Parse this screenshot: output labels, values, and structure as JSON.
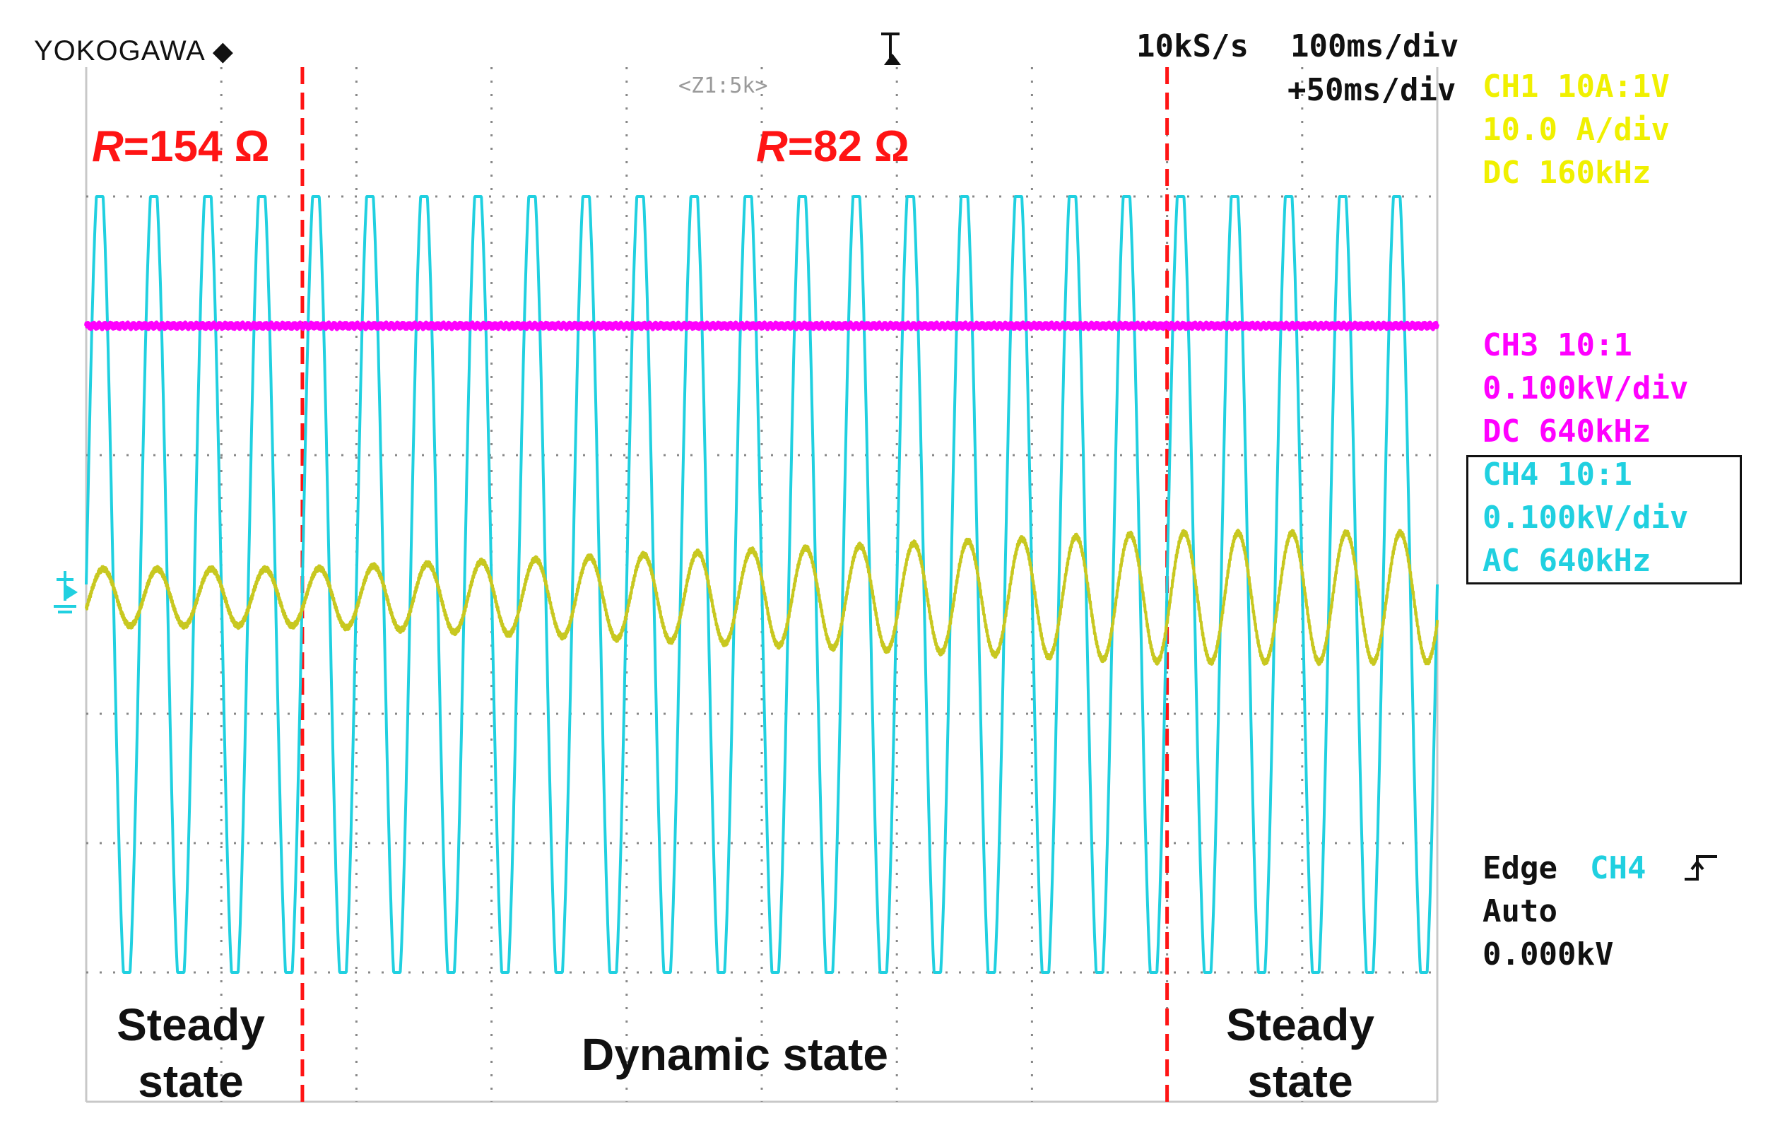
{
  "header": {
    "brand": "YOKOGAWA",
    "brand_icon": "diamond-icon",
    "trigger_marker_icon": "trigger-position-icon",
    "sample_rate": "10kS/s",
    "time_div": "100ms/div",
    "zoom_label": "<Z1:5k>",
    "delay": "+50ms/div"
  },
  "channels": {
    "ch1": {
      "line1": "CH1 10A:1V",
      "line2": "10.0 A/div",
      "line3": "DC   160kHz",
      "color": "#f0f000"
    },
    "ch3": {
      "line1": "CH3 10:1",
      "line2": "0.100kV/div",
      "line3": "DC   640kHz",
      "color": "#ff00ff"
    },
    "ch4": {
      "line1": "CH4 10:1",
      "line2": "0.100kV/div",
      "line3": "AC   640kHz",
      "color": "#20d0e0"
    }
  },
  "trigger": {
    "mode_label": "Edge",
    "source": "CH4",
    "slope_icon": "rising-edge-icon",
    "auto_label": "Auto",
    "level": "0.000kV"
  },
  "annotations": {
    "r_left_var": "R",
    "r_left_value": "=154 Ω",
    "r_right_var": "R",
    "r_right_value": "=82 Ω",
    "steady_left": "Steady\nstate",
    "dynamic": "Dynamic state",
    "steady_right": "Steady\nstate",
    "marker_color": "#ff1414"
  },
  "chart_data": {
    "type": "line",
    "grid": true,
    "x_divisions": 10,
    "y_divisions": 8,
    "x_unit_per_div": "100ms/div",
    "transition_markers_div": [
      1.6,
      8.0
    ],
    "series": [
      {
        "name": "CH4",
        "color": "#20d0e0",
        "kind": "sine",
        "cycles": 25,
        "amplitude_div": 3,
        "offset_div": 0
      },
      {
        "name": "CH3",
        "color": "#ff00ff",
        "kind": "dc",
        "level_div": 2.0
      },
      {
        "name": "CH1",
        "color": "#c8c820",
        "kind": "sine-growing",
        "cycles": 25,
        "amplitude_div_start": 0.22,
        "amplitude_div_end": 0.5,
        "offset_div": -0.1,
        "growth_start_div": 1.6,
        "growth_end_div": 8.0
      }
    ]
  }
}
